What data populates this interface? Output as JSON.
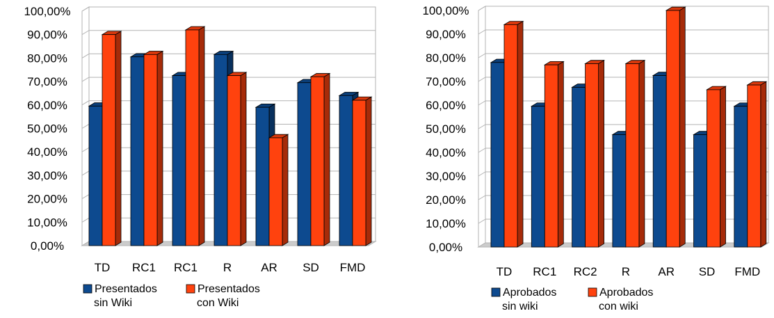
{
  "chart_data": [
    {
      "type": "bar",
      "title": "",
      "categories": [
        "TD",
        "RC1",
        "RC1",
        "R",
        "AR",
        "SD",
        "FMD"
      ],
      "series": [
        {
          "name": "Presentados sin Wiki",
          "values": [
            59.5,
            80.5,
            72.5,
            81.5,
            59.0,
            69.5,
            64.0
          ]
        },
        {
          "name": "Presentados con Wiki",
          "values": [
            90.0,
            81.5,
            92.0,
            72.5,
            46.0,
            72.0,
            62.0
          ]
        }
      ],
      "ylim": [
        0,
        100
      ],
      "yticks": [
        "0,00%",
        "10,00%",
        "20,00%",
        "30,00%",
        "40,00%",
        "50,00%",
        "60,00%",
        "70,00%",
        "80,00%",
        "90,00%",
        "100,00%"
      ],
      "legend": {
        "position": "bottom",
        "lines": [
          [
            "Presentados",
            "sin Wiki"
          ],
          [
            "Presentados",
            "con Wiki"
          ]
        ]
      },
      "grid": true,
      "colors": [
        "#0d4a8f",
        "#ff420e"
      ]
    },
    {
      "type": "bar",
      "title": "",
      "categories": [
        "TD",
        "RC1",
        "RC2",
        "R",
        "AR",
        "SD",
        "FMD"
      ],
      "series": [
        {
          "name": "Aprobados sin wiki",
          "values": [
            78.0,
            59.5,
            67.5,
            47.5,
            72.5,
            47.5,
            59.5
          ]
        },
        {
          "name": "Aprobados con wiki",
          "values": [
            94.0,
            77.0,
            77.5,
            77.5,
            100.0,
            66.5,
            68.5
          ]
        }
      ],
      "ylim": [
        0,
        100
      ],
      "yticks": [
        "0,00%",
        "10,00%",
        "20,00%",
        "30,00%",
        "40,00%",
        "50,00%",
        "60,00%",
        "70,00%",
        "80,00%",
        "90,00%",
        "100,00%"
      ],
      "legend": {
        "position": "bottom",
        "lines": [
          [
            "Aprobados",
            "sin wiki"
          ],
          [
            "Aprobados",
            "con wiki"
          ]
        ]
      },
      "grid": true,
      "colors": [
        "#0d4a8f",
        "#ff420e"
      ]
    }
  ]
}
